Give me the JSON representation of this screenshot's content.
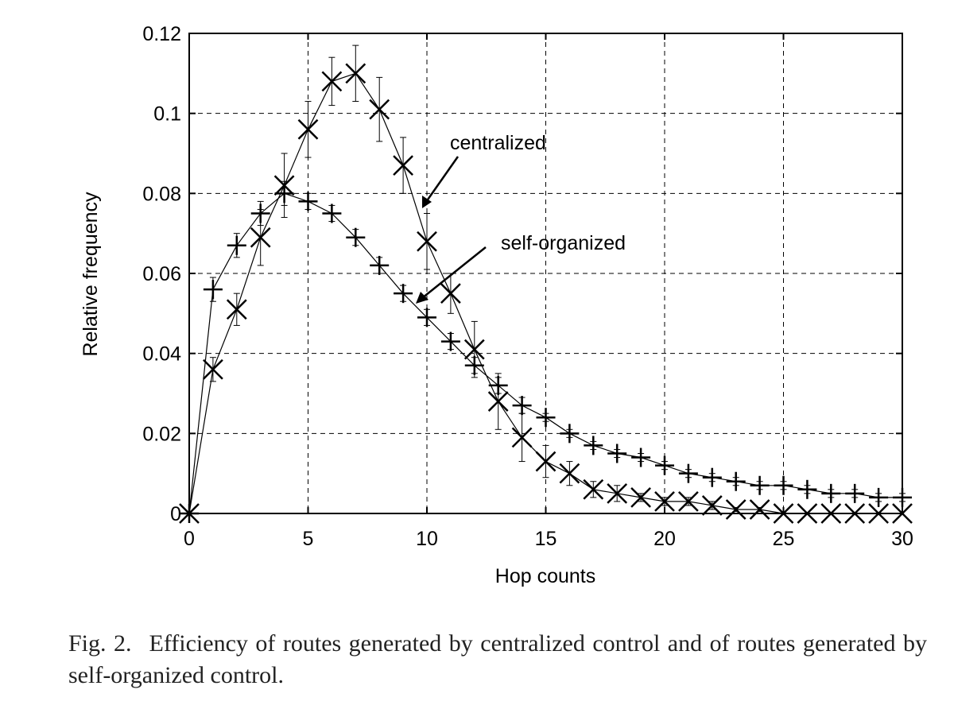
{
  "chart_data": {
    "type": "line",
    "title": "",
    "xlabel": "Hop counts",
    "ylabel": "Relative frequency",
    "xlim": [
      0,
      30
    ],
    "ylim": [
      0,
      0.12
    ],
    "xticks": [
      "0",
      "5",
      "10",
      "15",
      "20",
      "25",
      "30"
    ],
    "yticks": [
      "0",
      "0.02",
      "0.04",
      "0.06",
      "0.08",
      "0.1",
      "0.12"
    ],
    "grid": true,
    "legend": "none",
    "annotations": [
      {
        "text": "centralized",
        "points_to_x": 9.8,
        "points_to_y": 0.076
      },
      {
        "text": "self-organized",
        "points_to_x": 9.5,
        "points_to_y": 0.052
      }
    ],
    "series": [
      {
        "name": "centralized",
        "marker": "x",
        "x": [
          0,
          1,
          2,
          3,
          4,
          5,
          6,
          7,
          8,
          9,
          10,
          11,
          12,
          13,
          14,
          15,
          16,
          17,
          18,
          19,
          20,
          21,
          22,
          23,
          24,
          25,
          26,
          27,
          28,
          29,
          30
        ],
        "values": [
          0,
          0.036,
          0.051,
          0.069,
          0.082,
          0.096,
          0.108,
          0.11,
          0.101,
          0.087,
          0.068,
          0.055,
          0.041,
          0.028,
          0.019,
          0.013,
          0.01,
          0.006,
          0.005,
          0.004,
          0.003,
          0.003,
          0.002,
          0.001,
          0.001,
          0,
          0,
          0,
          0,
          0,
          0
        ],
        "error": [
          0,
          0.003,
          0.004,
          0.007,
          0.008,
          0.007,
          0.006,
          0.007,
          0.008,
          0.007,
          0.007,
          0.005,
          0.007,
          0.007,
          0.006,
          0.004,
          0.003,
          0.002,
          0.002,
          0.001,
          0.001,
          0.001,
          0.001,
          0.0005,
          0.0005,
          0,
          0,
          0,
          0,
          0,
          0
        ]
      },
      {
        "name": "self-organized",
        "marker": "+",
        "x": [
          0,
          1,
          2,
          3,
          4,
          5,
          6,
          7,
          8,
          9,
          10,
          11,
          12,
          13,
          14,
          15,
          16,
          17,
          18,
          19,
          20,
          21,
          22,
          23,
          24,
          25,
          26,
          27,
          28,
          29,
          30
        ],
        "values": [
          0,
          0.056,
          0.067,
          0.075,
          0.08,
          0.078,
          0.075,
          0.069,
          0.062,
          0.055,
          0.049,
          0.043,
          0.037,
          0.032,
          0.027,
          0.024,
          0.02,
          0.017,
          0.015,
          0.014,
          0.012,
          0.01,
          0.009,
          0.008,
          0.007,
          0.007,
          0.006,
          0.005,
          0.005,
          0.004,
          0.004
        ],
        "error": [
          0,
          0.003,
          0.003,
          0.003,
          0.003,
          0.002,
          0.002,
          0.002,
          0.002,
          0.002,
          0.002,
          0.002,
          0.002,
          0.002,
          0.002,
          0.001,
          0.001,
          0.001,
          0.001,
          0.001,
          0.001,
          0.001,
          0.001,
          0.001,
          0.001,
          0.001,
          0.001,
          0.001,
          0.001,
          0.001,
          0.001
        ]
      }
    ]
  },
  "caption": {
    "label": "Fig. 2.",
    "text": "Efficiency of routes generated by centralized control and of routes generated by self-organized control."
  }
}
